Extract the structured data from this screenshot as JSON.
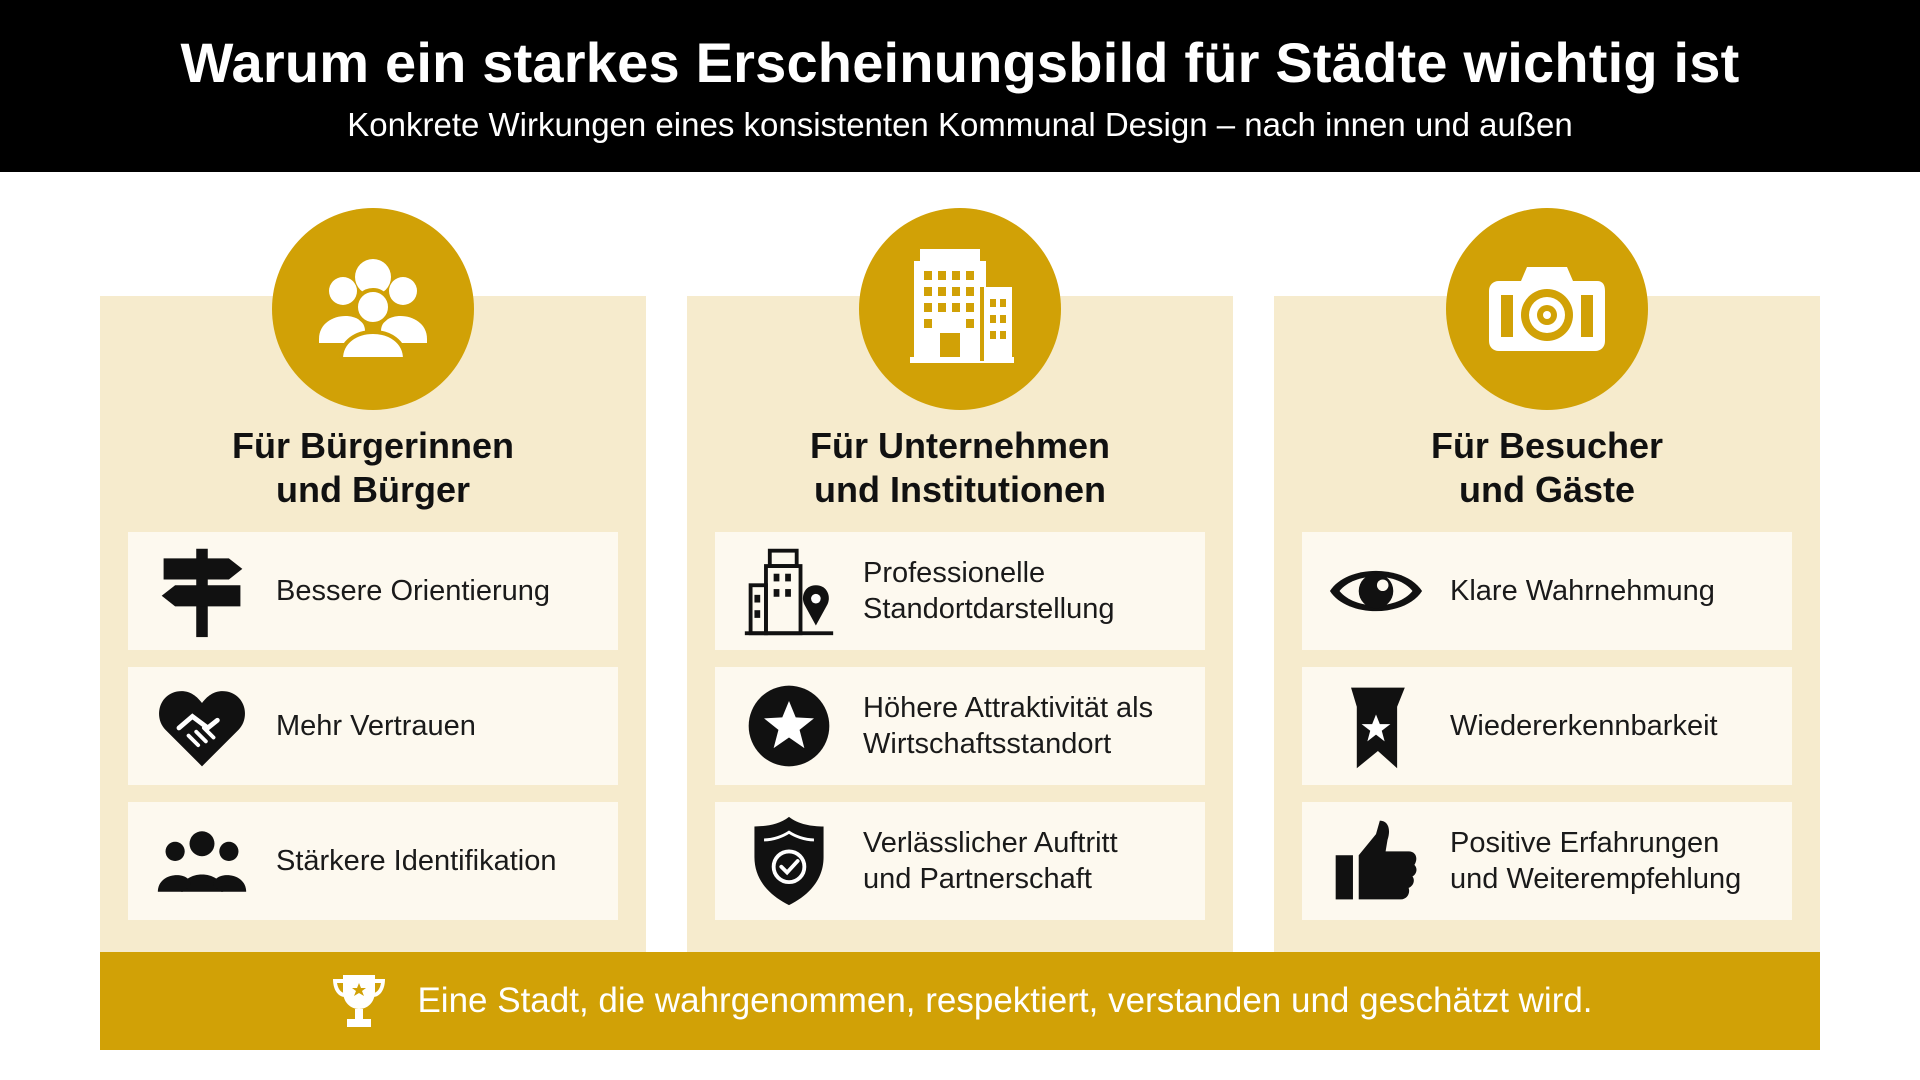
{
  "header": {
    "title": "Warum ein starkes Erscheinungsbild für Städte wichtig ist",
    "subtitle": "Konkrete Wirkungen eines konsistenten Kommunal Design – nach innen und außen"
  },
  "colors": {
    "accent": "#d1a106",
    "panel": "#f6ebcd",
    "card": "#fdf9ef",
    "header": "#000000"
  },
  "columns": [
    {
      "icon": "people-group-icon",
      "title_line1": "Für Bürgerinnen",
      "title_line2": "und Bürger",
      "items": [
        {
          "icon": "signpost-icon",
          "label": "Bessere Orientierung"
        },
        {
          "icon": "handshake-heart-icon",
          "label": "Mehr Vertrauen"
        },
        {
          "icon": "group-icon",
          "label": "Stärkere Identifikation"
        }
      ]
    },
    {
      "icon": "office-buildings-icon",
      "title_line1": "Für Unternehmen",
      "title_line2": "und Institutionen",
      "items": [
        {
          "icon": "building-location-icon",
          "label_line1": "Professionelle",
          "label_line2": "Standortdarstellung"
        },
        {
          "icon": "star-circle-icon",
          "label_line1": "Höhere Attraktivität als",
          "label_line2": "Wirtschaftsstandort"
        },
        {
          "icon": "shield-check-icon",
          "label_line1": "Verlässlicher Auftritt",
          "label_line2": "und Partnerschaft"
        }
      ]
    },
    {
      "icon": "camera-icon",
      "title_line1": "Für Besucher",
      "title_line2": "und Gäste",
      "items": [
        {
          "icon": "eye-icon",
          "label": "Klare Wahrnehmung"
        },
        {
          "icon": "bookmark-star-icon",
          "label": "Wiedererkennbarkeit"
        },
        {
          "icon": "thumbs-up-icon",
          "label_line1": "Positive Erfahrungen",
          "label_line2": "und Weiterempfehlung"
        }
      ]
    }
  ],
  "footer": {
    "icon": "trophy-icon",
    "text": "Eine Stadt, die wahrgenommen, respektiert, verstanden und geschätzt wird."
  }
}
